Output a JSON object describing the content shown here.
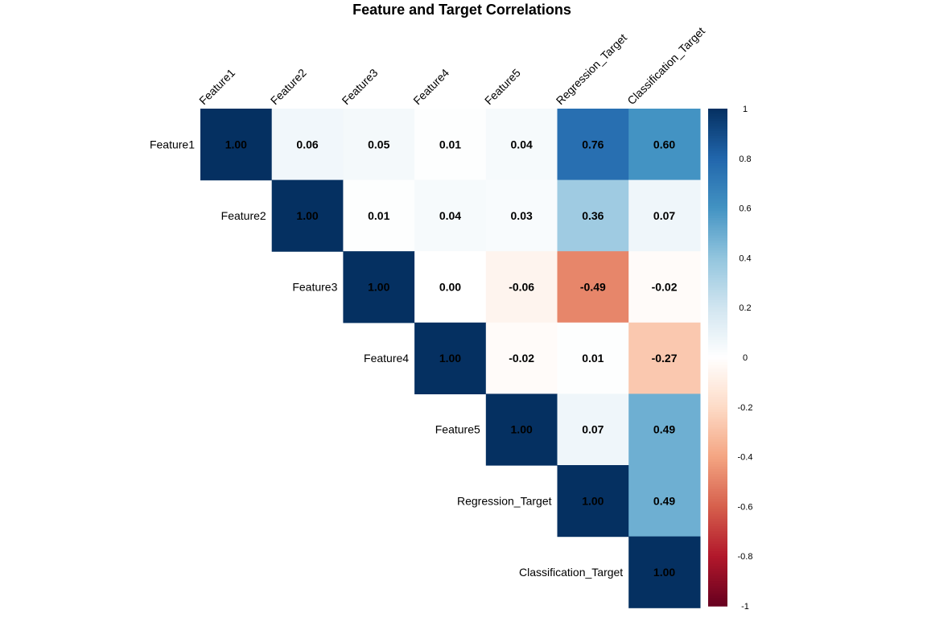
{
  "chart_data": {
    "type": "heatmap",
    "title": "Feature and Target Correlations",
    "variables": [
      "Feature1",
      "Feature2",
      "Feature3",
      "Feature4",
      "Feature5",
      "Regression_Target",
      "Classification_Target"
    ],
    "matrix_layout": "upper-triangular",
    "values": [
      [
        1.0,
        0.06,
        0.05,
        0.01,
        0.04,
        0.76,
        0.6
      ],
      [
        null,
        1.0,
        0.01,
        0.04,
        0.03,
        0.36,
        0.07
      ],
      [
        null,
        null,
        1.0,
        0.0,
        -0.06,
        -0.49,
        -0.02
      ],
      [
        null,
        null,
        null,
        1.0,
        -0.02,
        0.01,
        -0.27
      ],
      [
        null,
        null,
        null,
        null,
        1.0,
        0.07,
        0.49
      ],
      [
        null,
        null,
        null,
        null,
        null,
        1.0,
        0.49
      ],
      [
        null,
        null,
        null,
        null,
        null,
        null,
        1.0
      ]
    ],
    "colorbar": {
      "range": [
        -1,
        1
      ],
      "ticks": [
        "1",
        "0.8",
        "0.6",
        "0.4",
        "0.2",
        "0",
        "-0.2",
        "-0.4",
        "-0.6",
        "-0.8",
        "-1"
      ],
      "tick_values": [
        1,
        0.8,
        0.6,
        0.4,
        0.2,
        0,
        -0.2,
        -0.4,
        -0.6,
        -0.8,
        -1
      ],
      "palette": [
        "#67001F",
        "#B2182B",
        "#D6604D",
        "#F4A582",
        "#FDDBC7",
        "#FFFFFF",
        "#D1E5F0",
        "#92C5DE",
        "#4393C3",
        "#2166AC",
        "#053061"
      ]
    },
    "column_label_rotation": "45deg"
  }
}
